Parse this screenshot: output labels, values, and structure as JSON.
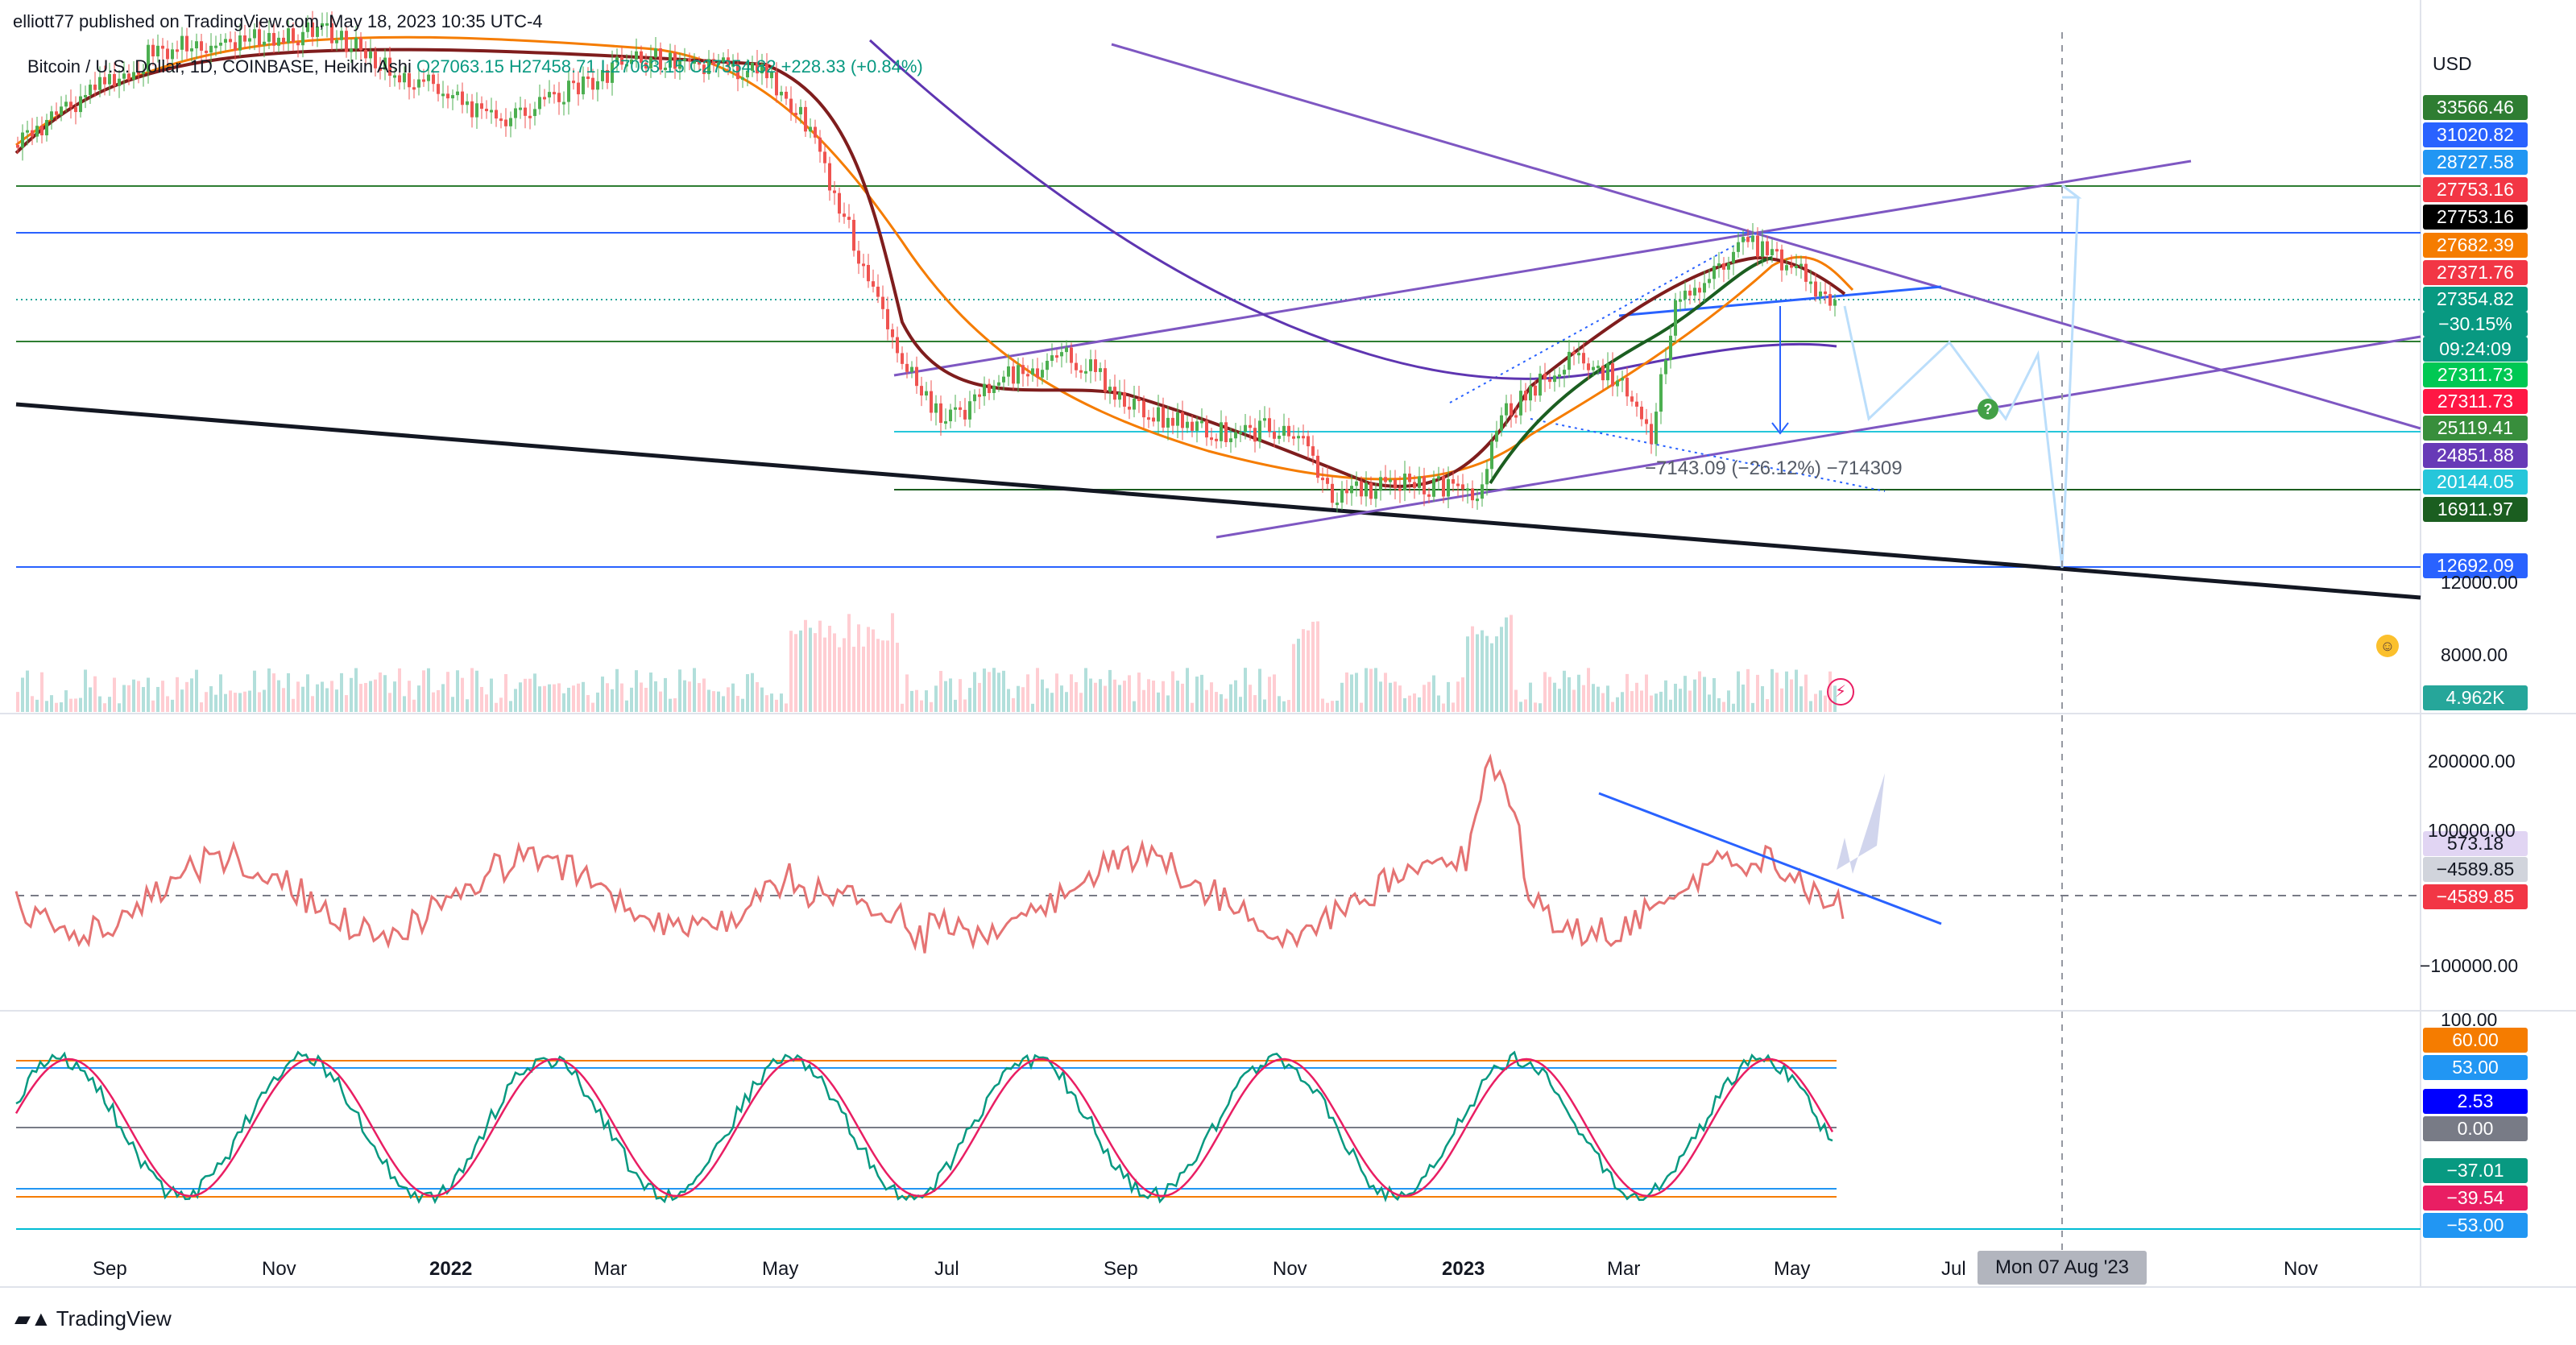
{
  "header": {
    "publisher": "elliott77 published on TradingView.com, May 18, 2023 10:35 UTC-4",
    "symbol_line": "Bitcoin / U.S. Dollar, 1D, COINBASE, Heikin Ashi",
    "ohlc_line": "O27063.15 H27458.71 L27063.15 C27354.82 +228.33 (+0.84%)"
  },
  "price_axis": {
    "currency": "USD",
    "tick_labels": [
      "12000.00",
      "8000.00"
    ],
    "badges": [
      {
        "text": "33566.46",
        "color": "#2e7d32"
      },
      {
        "text": "31020.82",
        "color": "#2962ff"
      },
      {
        "text": "28727.58",
        "color": "#2196f3"
      },
      {
        "text": "27753.16",
        "color": "#f23645"
      },
      {
        "text": "27753.16",
        "color": "#000000"
      },
      {
        "text": "27682.39",
        "color": "#f57c00"
      },
      {
        "text": "27371.76",
        "color": "#f23645"
      },
      {
        "text": "27354.82",
        "color": "#089981"
      },
      {
        "text": "−30.15%",
        "color": "#089981"
      },
      {
        "text": "09:24:09",
        "color": "#089981"
      },
      {
        "text": "27311.73",
        "color": "#00c853"
      },
      {
        "text": "27311.73",
        "color": "#ff1744"
      },
      {
        "text": "25119.41",
        "color": "#388e3c"
      },
      {
        "text": "24851.88",
        "color": "#673ab7"
      },
      {
        "text": "20144.05",
        "color": "#26c6da"
      },
      {
        "text": "16911.97",
        "color": "#1b5e20"
      },
      {
        "text": "12692.09",
        "color": "#2962ff"
      },
      {
        "text": "4.962K",
        "color": "#26a69a"
      }
    ]
  },
  "cvd_pane": {
    "tick_labels": [
      "200000.00",
      "100000.00",
      "−100000.00"
    ],
    "badges": [
      {
        "text": "573.18",
        "color": "#e1d5f3",
        "fg": "#131722"
      },
      {
        "text": "−4589.85",
        "color": "#d1d4dc",
        "fg": "#131722"
      },
      {
        "text": "−4589.85",
        "color": "#f23645",
        "fg": "#ffffff"
      }
    ]
  },
  "osc_pane": {
    "tick_labels": [
      "100.00"
    ],
    "badges": [
      {
        "text": "60.00",
        "color": "#f57c00"
      },
      {
        "text": "53.00",
        "color": "#2196f3"
      },
      {
        "text": "2.53",
        "color": "#0000ff"
      },
      {
        "text": "0.00",
        "color": "#787b86"
      },
      {
        "text": "−37.01",
        "color": "#089981"
      },
      {
        "text": "−39.54",
        "color": "#e91e63"
      },
      {
        "text": "−53.00",
        "color": "#2196f3"
      }
    ]
  },
  "time_axis": {
    "labels": [
      "Sep",
      "Nov",
      "2022",
      "Mar",
      "May",
      "Jul",
      "Sep",
      "Nov",
      "2023",
      "Mar",
      "May",
      "Jul",
      "Nov"
    ],
    "marker_date": "Mon 07 Aug '23"
  },
  "measure_label": "−7143.09 (−26.12%) −714309",
  "branding": "TradingView",
  "chart_data": {
    "type": "line",
    "title": "Bitcoin / U.S. Dollar, 1D, COINBASE, Heikin Ashi",
    "x_range": [
      "2021-08",
      "2023-12"
    ],
    "y_unit": "USD",
    "horizontal_levels": [
      33566.46,
      31020.82,
      28727.58,
      27753.16,
      27682.39,
      27371.76,
      27354.82,
      27311.73,
      25119.41,
      24851.88,
      20144.05,
      16911.97,
      12692.09
    ],
    "last_close": 27354.82,
    "change": 228.33,
    "change_pct": 0.84,
    "volume_last": "4.962K",
    "oscillator_levels": [
      60.0,
      53.0,
      0.0,
      -53.0
    ],
    "colors": {
      "up": "#089981",
      "down": "#f23645",
      "trend": "#7e57c2",
      "support": "#2e7d32"
    }
  }
}
